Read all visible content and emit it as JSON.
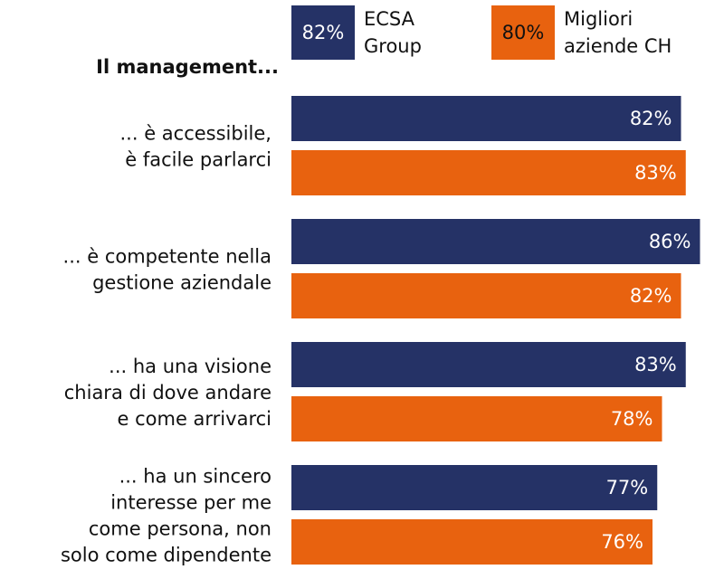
{
  "chart_data": {
    "type": "hbar",
    "title": "Il management...",
    "categories": [
      [
        "... è accessibile,",
        "è facile parlarci"
      ],
      [
        "... è competente nella",
        "gestione aziendale"
      ],
      [
        "... ha una visione",
        "chiara di dove andare",
        "e come arrivarci"
      ],
      [
        "... ha un sincero",
        "interesse per me",
        "come persona, non",
        "solo come dipendente"
      ]
    ],
    "series": [
      {
        "name": "ECSA Group",
        "color": "#253266",
        "total": 82,
        "total_label": "82%",
        "values": [
          82,
          86,
          83,
          77
        ],
        "value_labels": [
          "82%",
          "86%",
          "83%",
          "77%"
        ]
      },
      {
        "name": "Migliori aziende CH",
        "color": "#e8620f",
        "total": 80,
        "total_label": "80%",
        "values": [
          83,
          82,
          78,
          76
        ],
        "value_labels": [
          "83%",
          "82%",
          "78%",
          "76%"
        ]
      }
    ],
    "xlim": [
      0,
      100
    ]
  }
}
